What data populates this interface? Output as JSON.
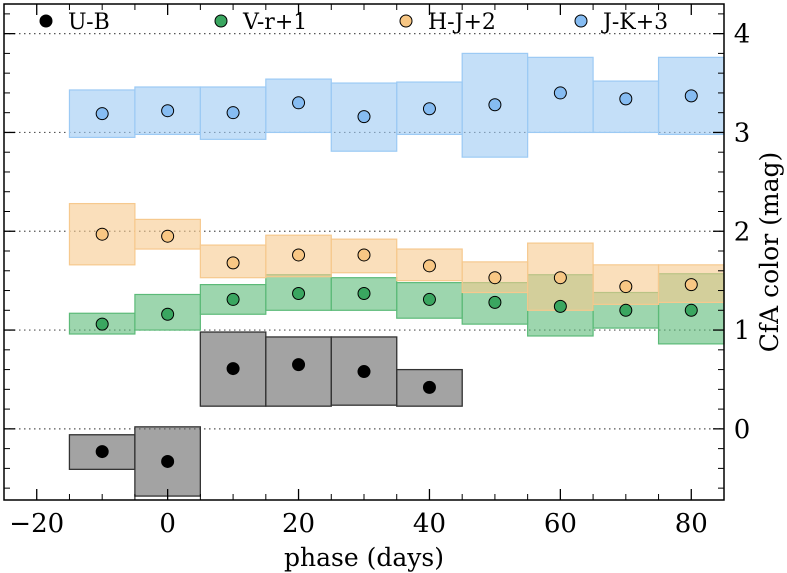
{
  "chart_data": {
    "type": "scatter",
    "title": "",
    "xlabel": "phase (days)",
    "ylabel": "CfA color (mag)",
    "xlim": [
      -25,
      85
    ],
    "ylim": [
      -0.72,
      4.3
    ],
    "x_ticks": [
      -20,
      0,
      20,
      40,
      60,
      80
    ],
    "x_tick_labels": [
      "−20",
      "0",
      "20",
      "40",
      "60",
      "80"
    ],
    "y_ticks": [
      0,
      1,
      2,
      3,
      4
    ],
    "y_tick_labels": [
      "0",
      "1",
      "2",
      "3",
      "4"
    ],
    "y_axis_side": "right",
    "reference_lines_y": [
      0,
      1,
      2,
      3,
      4
    ],
    "legend_position": "top",
    "series": [
      {
        "name": "U-B",
        "marker_color": "#000000",
        "band_color": "#666666",
        "points": [
          {
            "x": -10,
            "y": -0.23
          },
          {
            "x": 0,
            "y": -0.33
          },
          {
            "x": 10,
            "y": 0.61
          },
          {
            "x": 20,
            "y": 0.65
          },
          {
            "x": 30,
            "y": 0.58
          },
          {
            "x": 40,
            "y": 0.42
          }
        ],
        "bands": [
          {
            "x0": -15,
            "x1": -5,
            "lo": -0.41,
            "hi": -0.06
          },
          {
            "x0": -5,
            "x1": 5,
            "lo": -0.68,
            "hi": 0.02
          },
          {
            "x0": 5,
            "x1": 15,
            "lo": 0.23,
            "hi": 0.98
          },
          {
            "x0": 15,
            "x1": 25,
            "lo": 0.23,
            "hi": 0.93
          },
          {
            "x0": 25,
            "x1": 35,
            "lo": 0.24,
            "hi": 0.93
          },
          {
            "x0": 35,
            "x1": 45,
            "lo": 0.23,
            "hi": 0.6
          }
        ]
      },
      {
        "name": "V-r+1",
        "marker_color": "#3aa660",
        "band_color": "#5cba78",
        "points": [
          {
            "x": -10,
            "y": 1.06
          },
          {
            "x": 0,
            "y": 1.16
          },
          {
            "x": 10,
            "y": 1.31
          },
          {
            "x": 20,
            "y": 1.37
          },
          {
            "x": 30,
            "y": 1.37
          },
          {
            "x": 40,
            "y": 1.31
          },
          {
            "x": 50,
            "y": 1.28
          },
          {
            "x": 60,
            "y": 1.24
          },
          {
            "x": 70,
            "y": 1.2
          },
          {
            "x": 80,
            "y": 1.2
          }
        ],
        "bands": [
          {
            "x0": -15,
            "x1": -5,
            "lo": 0.96,
            "hi": 1.17
          },
          {
            "x0": -5,
            "x1": 5,
            "lo": 1.0,
            "hi": 1.36
          },
          {
            "x0": 5,
            "x1": 15,
            "lo": 1.16,
            "hi": 1.46
          },
          {
            "x0": 15,
            "x1": 25,
            "lo": 1.2,
            "hi": 1.56
          },
          {
            "x0": 25,
            "x1": 35,
            "lo": 1.2,
            "hi": 1.53
          },
          {
            "x0": 35,
            "x1": 45,
            "lo": 1.12,
            "hi": 1.48
          },
          {
            "x0": 45,
            "x1": 55,
            "lo": 1.06,
            "hi": 1.48
          },
          {
            "x0": 55,
            "x1": 65,
            "lo": 0.94,
            "hi": 1.56
          },
          {
            "x0": 65,
            "x1": 75,
            "lo": 1.02,
            "hi": 1.38
          },
          {
            "x0": 75,
            "x1": 85,
            "lo": 0.86,
            "hi": 1.57
          }
        ]
      },
      {
        "name": "H-J+2",
        "marker_color": "#f8c784",
        "band_color": "#f6c98e",
        "points": [
          {
            "x": -10,
            "y": 1.97
          },
          {
            "x": 0,
            "y": 1.95
          },
          {
            "x": 10,
            "y": 1.68
          },
          {
            "x": 20,
            "y": 1.76
          },
          {
            "x": 30,
            "y": 1.76
          },
          {
            "x": 40,
            "y": 1.65
          },
          {
            "x": 50,
            "y": 1.53
          },
          {
            "x": 60,
            "y": 1.53
          },
          {
            "x": 70,
            "y": 1.44
          },
          {
            "x": 80,
            "y": 1.46
          }
        ],
        "bands": [
          {
            "x0": -15,
            "x1": -5,
            "lo": 1.66,
            "hi": 2.28
          },
          {
            "x0": -5,
            "x1": 5,
            "lo": 1.82,
            "hi": 2.12
          },
          {
            "x0": 5,
            "x1": 15,
            "lo": 1.53,
            "hi": 1.86
          },
          {
            "x0": 15,
            "x1": 25,
            "lo": 1.54,
            "hi": 1.96
          },
          {
            "x0": 25,
            "x1": 35,
            "lo": 1.58,
            "hi": 1.92
          },
          {
            "x0": 35,
            "x1": 45,
            "lo": 1.5,
            "hi": 1.82
          },
          {
            "x0": 45,
            "x1": 55,
            "lo": 1.38,
            "hi": 1.69
          },
          {
            "x0": 55,
            "x1": 65,
            "lo": 1.2,
            "hi": 1.88
          },
          {
            "x0": 65,
            "x1": 75,
            "lo": 1.26,
            "hi": 1.66
          },
          {
            "x0": 75,
            "x1": 85,
            "lo": 1.28,
            "hi": 1.66
          }
        ]
      },
      {
        "name": "J-K+3",
        "marker_color": "#86bcf2",
        "band_color": "#9ccaf4",
        "points": [
          {
            "x": -10,
            "y": 3.19
          },
          {
            "x": 0,
            "y": 3.22
          },
          {
            "x": 10,
            "y": 3.2
          },
          {
            "x": 20,
            "y": 3.3
          },
          {
            "x": 30,
            "y": 3.16
          },
          {
            "x": 40,
            "y": 3.24
          },
          {
            "x": 50,
            "y": 3.28
          },
          {
            "x": 60,
            "y": 3.4
          },
          {
            "x": 70,
            "y": 3.34
          },
          {
            "x": 80,
            "y": 3.37
          }
        ],
        "bands": [
          {
            "x0": -15,
            "x1": -5,
            "lo": 2.95,
            "hi": 3.43
          },
          {
            "x0": -5,
            "x1": 5,
            "lo": 2.98,
            "hi": 3.46
          },
          {
            "x0": 5,
            "x1": 15,
            "lo": 2.93,
            "hi": 3.46
          },
          {
            "x0": 15,
            "x1": 25,
            "lo": 3.0,
            "hi": 3.54
          },
          {
            "x0": 25,
            "x1": 35,
            "lo": 2.81,
            "hi": 3.5
          },
          {
            "x0": 35,
            "x1": 45,
            "lo": 2.98,
            "hi": 3.51
          },
          {
            "x0": 45,
            "x1": 55,
            "lo": 2.75,
            "hi": 3.8
          },
          {
            "x0": 55,
            "x1": 65,
            "lo": 3.0,
            "hi": 3.76
          },
          {
            "x0": 65,
            "x1": 75,
            "lo": 3.0,
            "hi": 3.52
          },
          {
            "x0": 75,
            "x1": 85,
            "lo": 2.98,
            "hi": 3.76
          }
        ]
      }
    ]
  }
}
